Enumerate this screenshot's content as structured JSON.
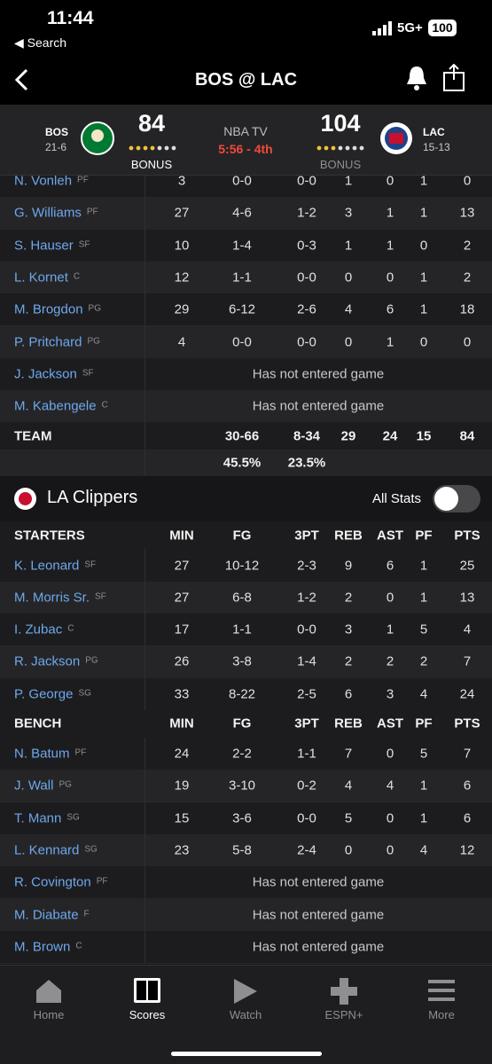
{
  "status_bar": {
    "time": "11:44",
    "back_label": "Search",
    "network": "5G+",
    "battery": "100"
  },
  "header": {
    "title": "BOS @ LAC"
  },
  "scoreboard": {
    "away": {
      "abbr": "BOS",
      "record": "21-6",
      "score": 84,
      "bonus": "BONUS"
    },
    "broadcast": "NBA TV",
    "clock": "5:56 - 4th",
    "home": {
      "abbr": "LAC",
      "record": "15-13",
      "score": 104,
      "bonus": "BONUS"
    }
  },
  "celtics": {
    "rows": [
      {
        "name": "N. Vonleh",
        "pos": "PF",
        "stats": [
          3,
          "0-0",
          "0-0",
          1,
          0,
          1,
          0
        ]
      },
      {
        "name": "G. Williams",
        "pos": "PF",
        "stats": [
          27,
          "4-6",
          "1-2",
          3,
          1,
          1,
          13
        ]
      },
      {
        "name": "S. Hauser",
        "pos": "SF",
        "stats": [
          10,
          "1-4",
          "0-3",
          1,
          1,
          0,
          2
        ]
      },
      {
        "name": "L. Kornet",
        "pos": "C",
        "stats": [
          12,
          "1-1",
          "0-0",
          0,
          0,
          1,
          2
        ]
      },
      {
        "name": "M. Brogdon",
        "pos": "PG",
        "stats": [
          29,
          "6-12",
          "2-6",
          4,
          6,
          1,
          18
        ]
      },
      {
        "name": "P. Pritchard",
        "pos": "PG",
        "stats": [
          4,
          "0-0",
          "0-0",
          0,
          1,
          0,
          0
        ]
      },
      {
        "name": "J. Jackson",
        "pos": "SF",
        "note": "Has not entered game"
      },
      {
        "name": "M. Kabengele",
        "pos": "C",
        "note": "Has not entered game"
      }
    ],
    "totals": {
      "label": "TEAM",
      "stats": [
        "30-66",
        "8-34",
        29,
        24,
        15,
        84
      ]
    },
    "percentages": [
      "45.5%",
      "23.5%"
    ]
  },
  "clippers": {
    "team_name": "LA Clippers",
    "toggle_label": "All Stats",
    "sections": [
      {
        "label": "STARTERS",
        "columns": [
          "MIN",
          "FG",
          "3PT",
          "REB",
          "AST",
          "PF",
          "PTS"
        ],
        "rows": [
          {
            "name": "K. Leonard",
            "pos": "SF",
            "stats": [
              27,
              "10-12",
              "2-3",
              9,
              6,
              1,
              25
            ]
          },
          {
            "name": "M. Morris Sr.",
            "pos": "SF",
            "stats": [
              27,
              "6-8",
              "1-2",
              2,
              0,
              1,
              13
            ]
          },
          {
            "name": "I. Zubac",
            "pos": "C",
            "stats": [
              17,
              "1-1",
              "0-0",
              3,
              1,
              5,
              4
            ]
          },
          {
            "name": "R. Jackson",
            "pos": "PG",
            "stats": [
              26,
              "3-8",
              "1-4",
              2,
              2,
              2,
              7
            ]
          },
          {
            "name": "P. George",
            "pos": "SG",
            "stats": [
              33,
              "8-22",
              "2-5",
              6,
              3,
              4,
              24
            ]
          }
        ]
      },
      {
        "label": "BENCH",
        "columns": [
          "MIN",
          "FG",
          "3PT",
          "REB",
          "AST",
          "PF",
          "PTS"
        ],
        "rows": [
          {
            "name": "N. Batum",
            "pos": "PF",
            "stats": [
              24,
              "2-2",
              "1-1",
              7,
              0,
              5,
              7
            ]
          },
          {
            "name": "J. Wall",
            "pos": "PG",
            "stats": [
              19,
              "3-10",
              "0-2",
              4,
              4,
              1,
              6
            ]
          },
          {
            "name": "T. Mann",
            "pos": "SG",
            "stats": [
              15,
              "3-6",
              "0-0",
              5,
              0,
              1,
              6
            ]
          },
          {
            "name": "L. Kennard",
            "pos": "SG",
            "stats": [
              23,
              "5-8",
              "2-4",
              0,
              0,
              4,
              12
            ]
          },
          {
            "name": "R. Covington",
            "pos": "PF",
            "note": "Has not entered game"
          },
          {
            "name": "M. Diabate",
            "pos": "F",
            "note": "Has not entered game"
          },
          {
            "name": "M. Brown",
            "pos": "C",
            "note": "Has not entered game"
          }
        ]
      }
    ]
  },
  "tab_bar": {
    "items": [
      "Home",
      "Scores",
      "Watch",
      "ESPN+",
      "More"
    ]
  }
}
